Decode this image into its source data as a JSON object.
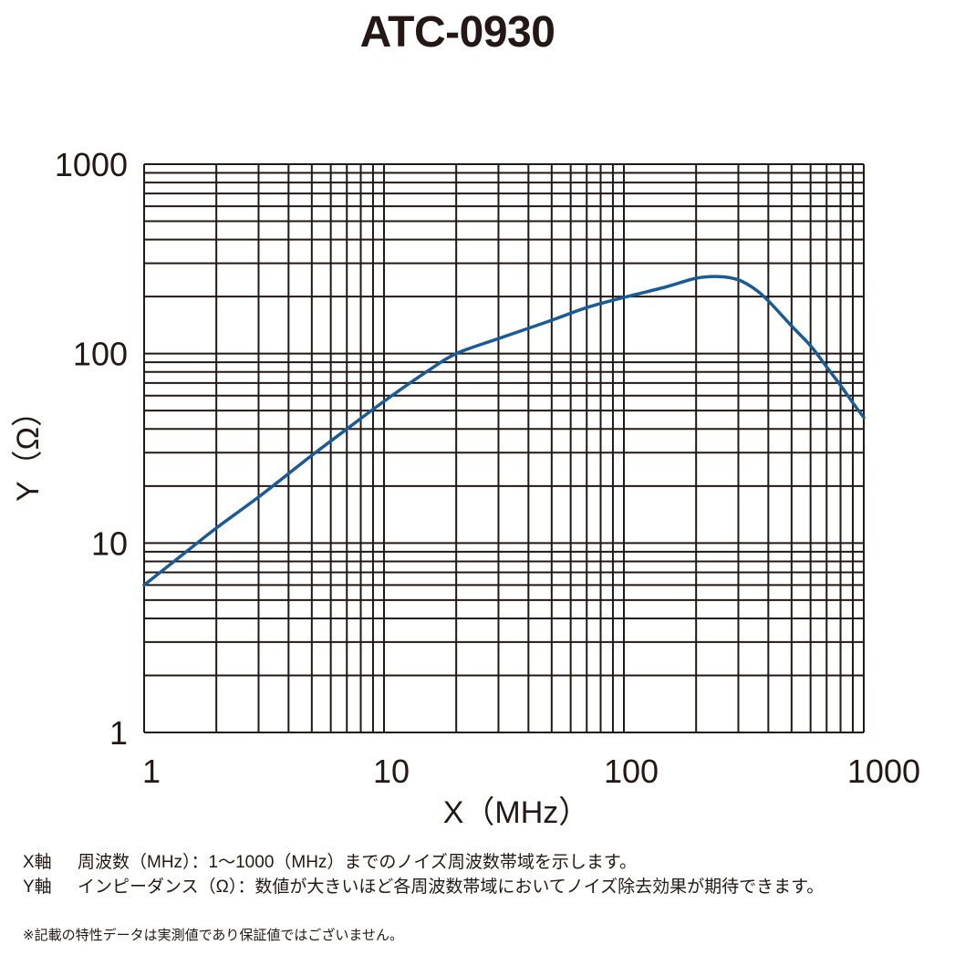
{
  "chart_data": {
    "type": "line",
    "title": "ATC-0930",
    "xlabel": "X（MHz）",
    "ylabel": "Y（Ω）",
    "x_scale": "log",
    "y_scale": "log",
    "xlim": [
      1,
      1000
    ],
    "ylim": [
      1,
      1000
    ],
    "grid": true,
    "x_ticks": [
      "1",
      "10",
      "100",
      "1000"
    ],
    "y_ticks": [
      "1",
      "10",
      "100",
      "1000"
    ],
    "series": [
      {
        "color": "#1a5b96",
        "points": [
          [
            1,
            6
          ],
          [
            1.5,
            9
          ],
          [
            2,
            12
          ],
          [
            3,
            17.5
          ],
          [
            5,
            29
          ],
          [
            7,
            40
          ],
          [
            10,
            56
          ],
          [
            15,
            80
          ],
          [
            20,
            100
          ],
          [
            30,
            120
          ],
          [
            50,
            150
          ],
          [
            70,
            175
          ],
          [
            100,
            198
          ],
          [
            150,
            225
          ],
          [
            200,
            250
          ],
          [
            250,
            255
          ],
          [
            300,
            245
          ],
          [
            350,
            220
          ],
          [
            400,
            190
          ],
          [
            500,
            140
          ],
          [
            600,
            110
          ],
          [
            700,
            85
          ],
          [
            800,
            68
          ],
          [
            900,
            55
          ],
          [
            1000,
            46
          ]
        ]
      }
    ]
  },
  "notes": {
    "x_axis_key": "X軸",
    "x_axis_text": "周波数（MHz）：1〜1000（MHz）までのノイズ周波数帯域を示します。",
    "y_axis_key": "Y軸",
    "y_axis_text": "インピーダンス（Ω）：数値が大きいほど各周波数帯域においてノイズ除去効果が期待できます。",
    "footnote": "※記載の特性データは実測値であり保証値ではございません。"
  }
}
